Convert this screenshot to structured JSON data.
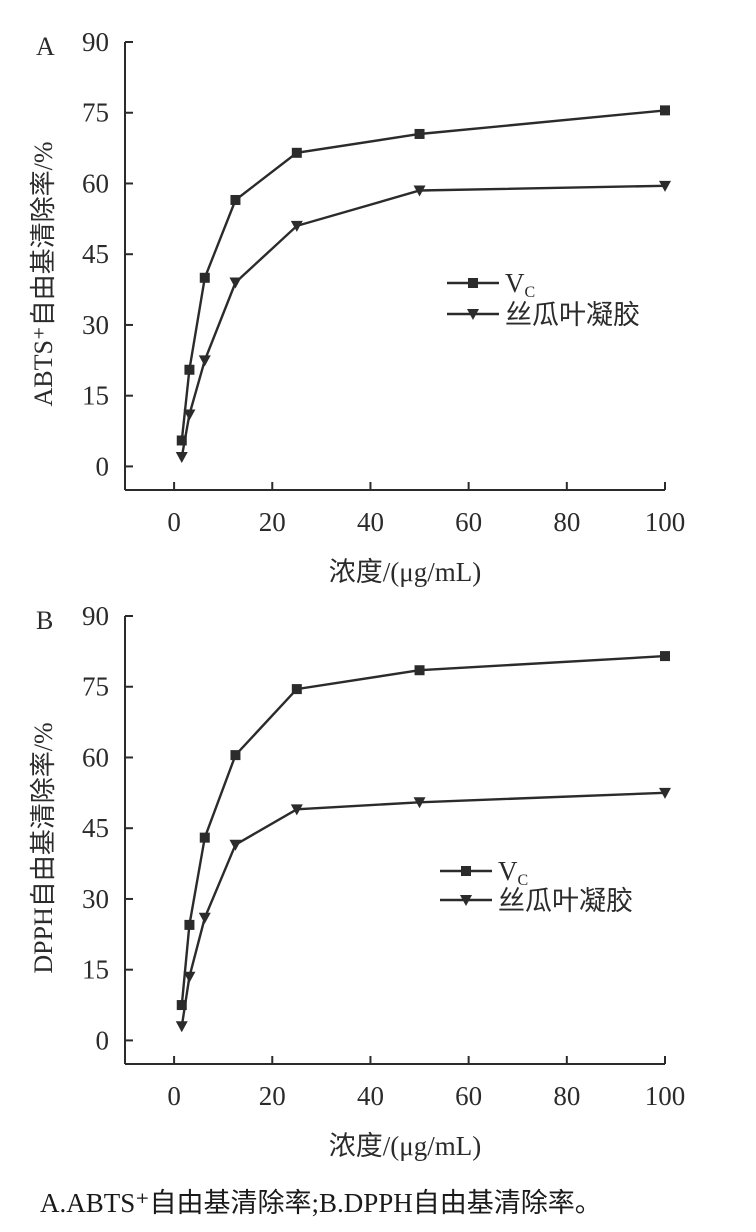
{
  "figure": {
    "caption": "A.ABTS⁺自由基清除率;B.DPPH自由基清除率。",
    "line_color": "#2b2b2b"
  },
  "chart_data": [
    {
      "type": "line",
      "panel_label": "A",
      "title": "",
      "xlabel": "浓度/(μg/mL)",
      "ylabel": "ABTS⁺自由基清除率/%",
      "xlim": [
        -10,
        100
      ],
      "ylim": [
        -5,
        90
      ],
      "xticks": [
        0,
        20,
        40,
        60,
        80,
        100
      ],
      "yticks": [
        0,
        15,
        30,
        45,
        60,
        75,
        90
      ],
      "grid": false,
      "legend_position": "right-middle",
      "series": [
        {
          "name": "VC",
          "name_main": "V",
          "name_sub": "C",
          "marker": "square",
          "x": [
            1.5625,
            3.125,
            6.25,
            12.5,
            25,
            50,
            100
          ],
          "y": [
            5.5,
            20.5,
            40,
            56.5,
            66.5,
            70.5,
            75.5
          ]
        },
        {
          "name": "丝瓜叶凝胶",
          "marker": "triangle-down",
          "x": [
            1.5625,
            3.125,
            6.25,
            12.5,
            25,
            50,
            100
          ],
          "y": [
            2,
            11,
            22.5,
            39,
            51,
            58.5,
            59.5
          ]
        }
      ]
    },
    {
      "type": "line",
      "panel_label": "B",
      "title": "",
      "xlabel": "浓度/(μg/mL)",
      "ylabel": "DPPH自由基清除率/%",
      "xlim": [
        -10,
        100
      ],
      "ylim": [
        -5,
        90
      ],
      "xticks": [
        0,
        20,
        40,
        60,
        80,
        100
      ],
      "yticks": [
        0,
        15,
        30,
        45,
        60,
        75,
        90
      ],
      "grid": false,
      "legend_position": "right-middle",
      "series": [
        {
          "name": "VC",
          "name_main": "V",
          "name_sub": "C",
          "marker": "square",
          "x": [
            1.5625,
            3.125,
            6.25,
            12.5,
            25,
            50,
            100
          ],
          "y": [
            7.5,
            24.5,
            43,
            60.5,
            74.5,
            78.5,
            81.5
          ]
        },
        {
          "name": "丝瓜叶凝胶",
          "marker": "triangle-down",
          "x": [
            1.5625,
            3.125,
            6.25,
            12.5,
            25,
            50,
            100
          ],
          "y": [
            3,
            13.5,
            26,
            41.5,
            49,
            50.5,
            52.5
          ]
        }
      ]
    }
  ]
}
